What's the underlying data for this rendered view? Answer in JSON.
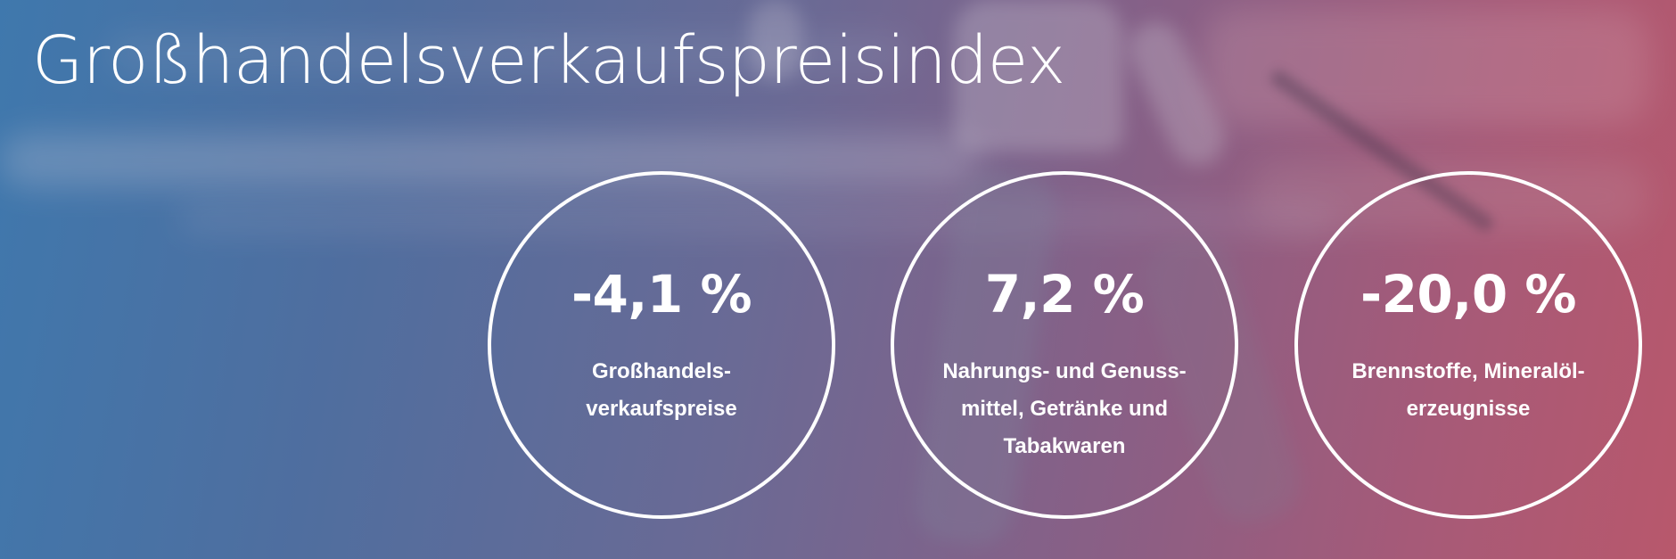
{
  "title": "Großhandelsverkaufspreisindex",
  "stats": [
    {
      "value": "-4,1 %",
      "label": "Großhandels-\nverkaufspreise"
    },
    {
      "value": "7,2 %",
      "label": "Nahrungs- und Genuss-\nmittel, Getränke und\nTabakwaren"
    },
    {
      "value": "-20,0 %",
      "label": "Brennstoffe, Mineralöl-\nerzeugnisse"
    }
  ],
  "colors": {
    "gradient_left": "#3f78ad",
    "gradient_right": "#b8586c",
    "text": "#ffffff",
    "circle_border": "#ffffff"
  }
}
